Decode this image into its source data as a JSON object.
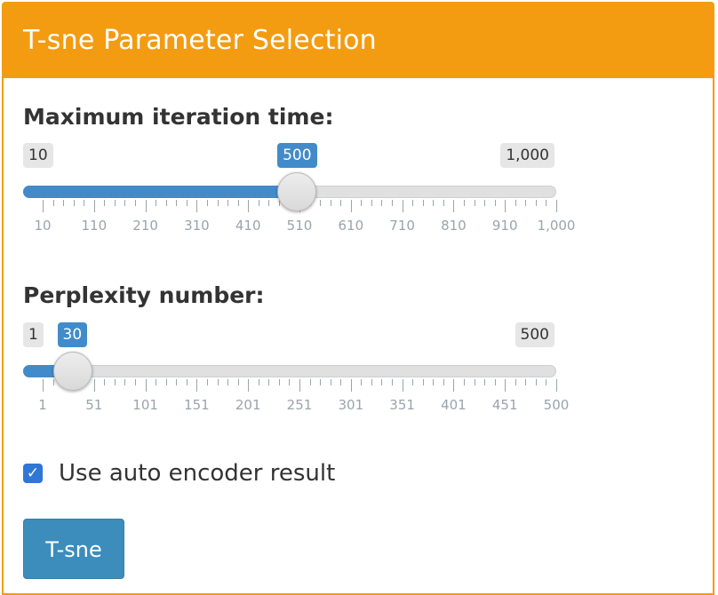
{
  "panel": {
    "title": "T-sne Parameter Selection"
  },
  "iteration": {
    "label": "Maximum iteration time:",
    "min_label": "10",
    "max_label": "1,000",
    "value_label": "500",
    "fraction": 0.495,
    "ticks": [
      "10",
      "110",
      "210",
      "310",
      "410",
      "510",
      "610",
      "710",
      "810",
      "910",
      "1,000"
    ]
  },
  "perplexity": {
    "label": "Perplexity number:",
    "min_label": "1",
    "max_label": "500",
    "value_label": "30",
    "fraction": 0.058,
    "ticks": [
      "1",
      "51",
      "101",
      "151",
      "201",
      "251",
      "301",
      "351",
      "401",
      "451",
      "500"
    ]
  },
  "auto_encoder": {
    "label": "Use auto encoder result",
    "checked": true,
    "check_glyph": "✓"
  },
  "run_button": {
    "label": "T-sne"
  },
  "colors": {
    "header": "#f39c12",
    "slider_fill": "#428bca",
    "button": "#3c8dbc",
    "checkbox": "#2f76d6"
  }
}
